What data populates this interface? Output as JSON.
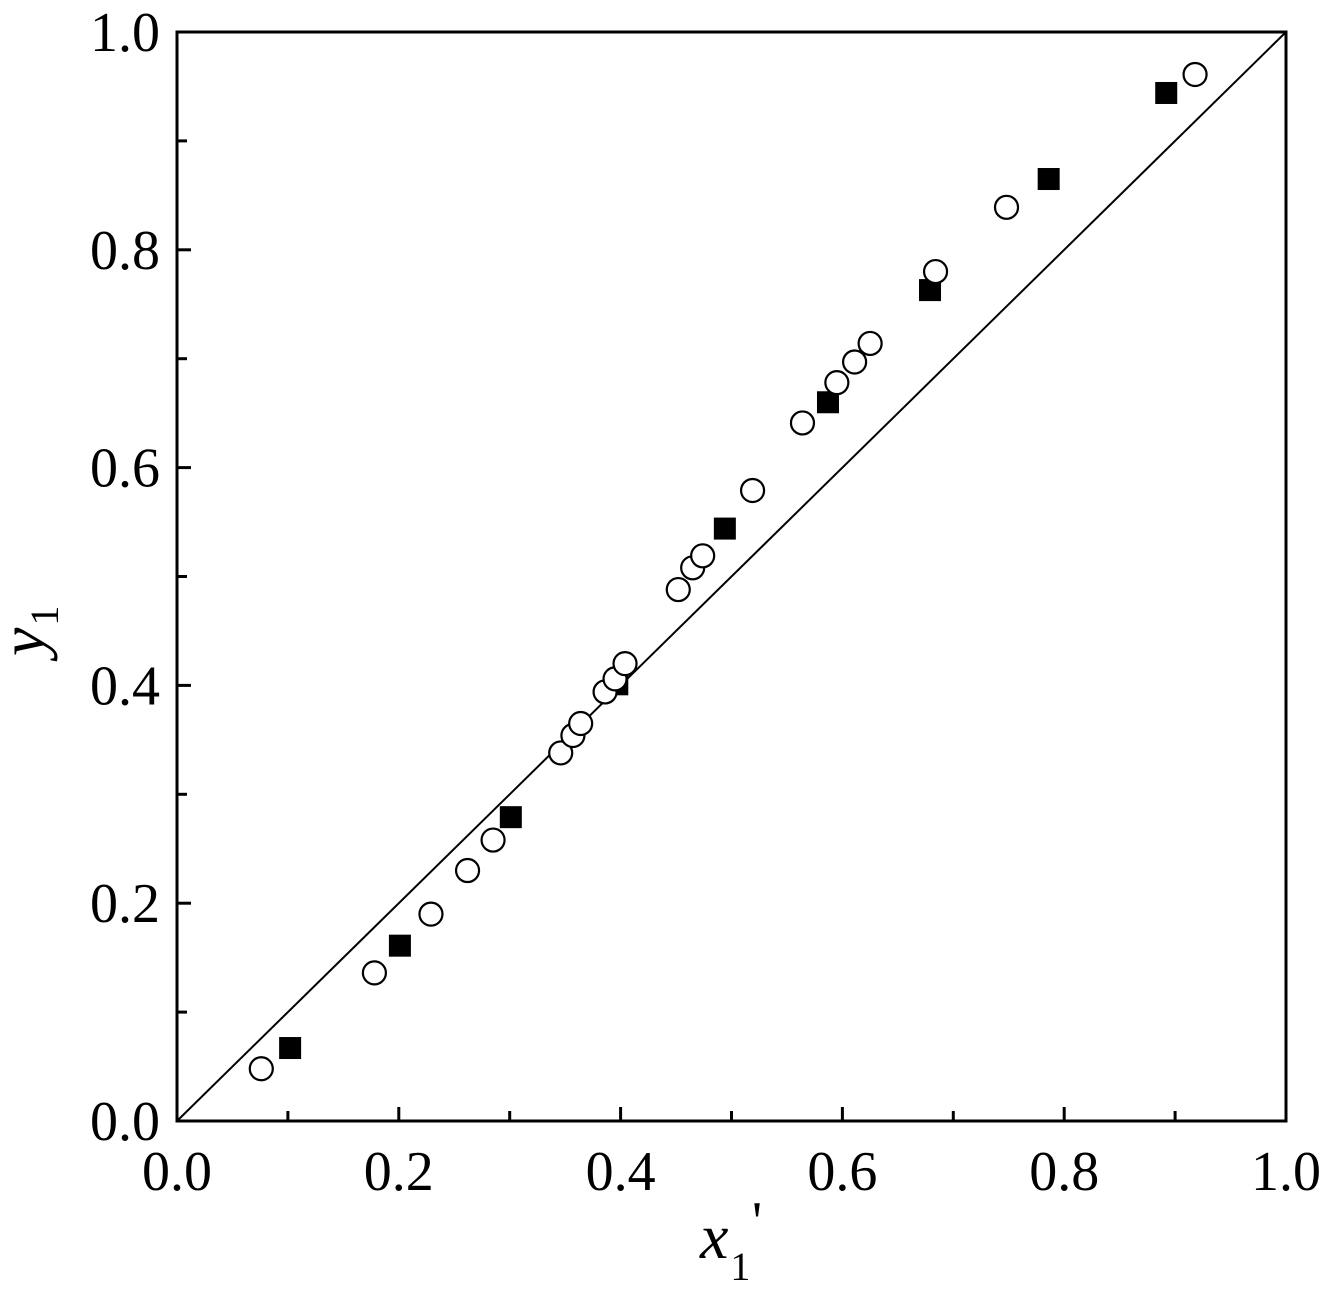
{
  "chart_data": {
    "type": "scatter",
    "title": "",
    "xlabel": {
      "symbol": "x",
      "subscript": "1",
      "prime": "'"
    },
    "ylabel": {
      "symbol": "y",
      "subscript": "1"
    },
    "xlim": [
      0.0,
      1.0
    ],
    "ylim": [
      0.0,
      1.0
    ],
    "xticks": [
      0.0,
      0.2,
      0.4,
      0.6,
      0.8,
      1.0
    ],
    "xtick_labels": [
      "0.0",
      "0.2",
      "0.4",
      "0.6",
      "0.8",
      "1.0"
    ],
    "yticks": [
      0.0,
      0.2,
      0.4,
      0.6,
      0.8,
      1.0
    ],
    "ytick_labels": [
      "0.0",
      "0.2",
      "0.4",
      "0.6",
      "0.8",
      "1.0"
    ],
    "minor_tick_step": 0.1,
    "grid": false,
    "legend": "none",
    "reference_line": {
      "style": "solid",
      "color": "#000000",
      "x": [
        0.0,
        1.0
      ],
      "y": [
        0.0,
        1.0
      ]
    },
    "series": [
      {
        "marker": "filled-square",
        "color": "#000000",
        "x": [
          0.102,
          0.201,
          0.301,
          0.397,
          0.494,
          0.587,
          0.679,
          0.786,
          0.892
        ],
        "y": [
          0.067,
          0.161,
          0.279,
          0.401,
          0.544,
          0.66,
          0.763,
          0.865,
          0.944
        ]
      },
      {
        "marker": "open-circle",
        "color": "#000000",
        "x": [
          0.076,
          0.178,
          0.229,
          0.262,
          0.285,
          0.346,
          0.357,
          0.364,
          0.386,
          0.395,
          0.404,
          0.452,
          0.465,
          0.474,
          0.519,
          0.564,
          0.595,
          0.611,
          0.625,
          0.684,
          0.748,
          0.918
        ],
        "y": [
          0.048,
          0.136,
          0.19,
          0.23,
          0.258,
          0.338,
          0.354,
          0.365,
          0.394,
          0.406,
          0.42,
          0.488,
          0.508,
          0.519,
          0.579,
          0.641,
          0.678,
          0.697,
          0.714,
          0.78,
          0.839,
          0.961
        ]
      }
    ]
  }
}
